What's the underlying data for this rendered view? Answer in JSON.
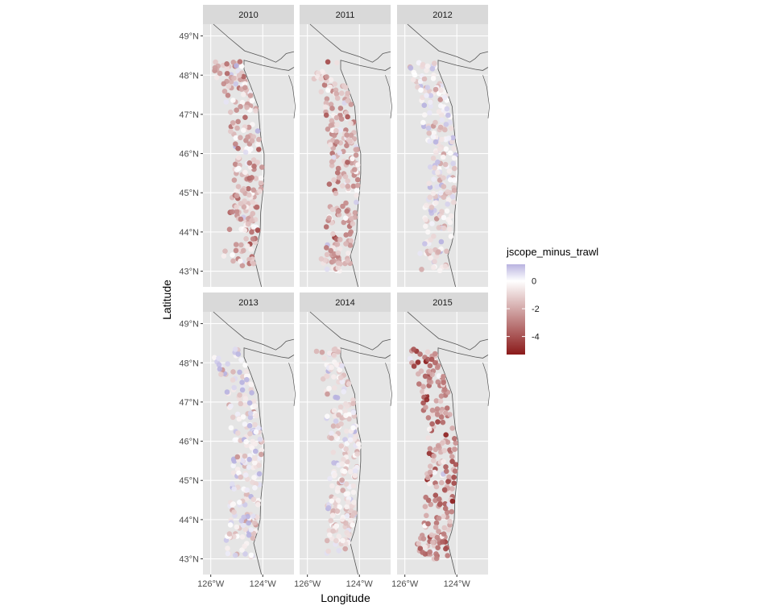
{
  "chart_data": {
    "type": "scatter",
    "facet_variable": "year",
    "panels": [
      {
        "title": "2010",
        "mean": -1.6,
        "spread": 1.2,
        "seed": 11
      },
      {
        "title": "2011",
        "mean": -1.7,
        "spread": 1.1,
        "seed": 23
      },
      {
        "title": "2012",
        "mean": -0.3,
        "spread": 0.9,
        "seed": 37
      },
      {
        "title": "2013",
        "mean": -0.2,
        "spread": 1.0,
        "seed": 41
      },
      {
        "title": "2014",
        "mean": -0.6,
        "spread": 0.9,
        "seed": 53
      },
      {
        "title": "2015",
        "mean": -2.3,
        "spread": 1.2,
        "seed": 67
      }
    ],
    "xlabel": "Longitude",
    "ylabel": "Latitude",
    "x_ticks": [
      {
        "value": -126,
        "label": "126°W"
      },
      {
        "value": -124,
        "label": "124°W"
      }
    ],
    "y_ticks": [
      {
        "value": 43,
        "label": "43°N"
      },
      {
        "value": 44,
        "label": "44°N"
      },
      {
        "value": 45,
        "label": "45°N"
      },
      {
        "value": 46,
        "label": "46°N"
      },
      {
        "value": 47,
        "label": "47°N"
      },
      {
        "value": 48,
        "label": "48°N"
      },
      {
        "value": 49,
        "label": "49°N"
      }
    ],
    "xlim": [
      -126.3,
      -122.8
    ],
    "ylim": [
      42.6,
      49.3
    ],
    "legend": {
      "title": "jscope_minus_trawl",
      "position": "right",
      "breaks": [
        {
          "value": 0,
          "label": "0"
        },
        {
          "value": -2,
          "label": "-2"
        },
        {
          "value": -4,
          "label": "-4"
        }
      ],
      "range": [
        -5.3,
        1.2
      ],
      "low_color": "#8b1a1a",
      "mid_color": "#ffffff",
      "high_color": "#b9b3e0"
    },
    "background_color": "#e5e5e5",
    "strip_color": "#d9d9d9",
    "grid": true
  }
}
